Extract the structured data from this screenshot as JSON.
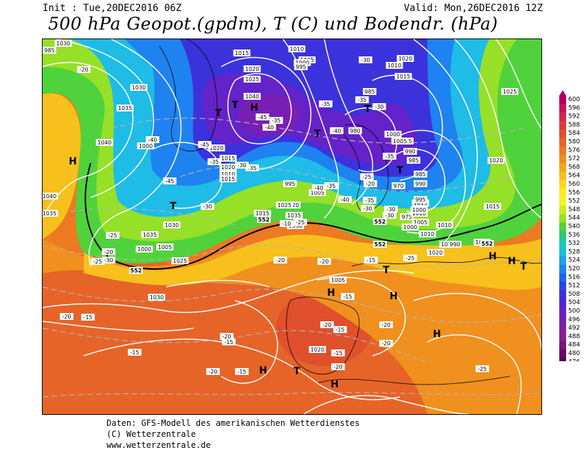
{
  "header": {
    "init": "Init : Tue,20DEC2016 06Z",
    "valid": "Valid: Mon,26DEC2016 12Z",
    "title": "500 hPa Geopot.(gpdm), T (C) und Bodendr. (hPa)"
  },
  "footer": {
    "line1": "Daten: GFS-Modell des amerikanischen Wetterdienstes",
    "line2": "(C) Wetterzentrale",
    "line3": "www.wetterzentrale.de"
  },
  "legend": {
    "values": [
      "600",
      "596",
      "592",
      "588",
      "584",
      "580",
      "576",
      "572",
      "568",
      "564",
      "560",
      "556",
      "552",
      "548",
      "544",
      "540",
      "536",
      "532",
      "528",
      "524",
      "520",
      "516",
      "512",
      "508",
      "504",
      "500",
      "496",
      "492",
      "488",
      "484",
      "480",
      "476"
    ],
    "colors": [
      "#b4005a",
      "#c8145a",
      "#d22850",
      "#dc3c3c",
      "#e0502d",
      "#e66428",
      "#ec7a22",
      "#f0901e",
      "#f4a81c",
      "#f8c01c",
      "#fcd820",
      "#fcec24",
      "#f0f428",
      "#c8ec28",
      "#96e028",
      "#50d23c",
      "#28c878",
      "#1ec8b4",
      "#1ebce6",
      "#1ea0f0",
      "#1e82f0",
      "#1e64ee",
      "#2846e6",
      "#3c32dc",
      "#5028d2",
      "#6422c8",
      "#781eb4",
      "#821ea0",
      "#8c1e8c",
      "#7a1478",
      "#640a64",
      "#500550"
    ]
  },
  "map": {
    "pressure_labels": [
      "990",
      "985",
      "1015",
      "1010",
      "1005",
      "1000",
      "995",
      "1020",
      "1025",
      "1030",
      "1035",
      "1040",
      "985",
      "980",
      "975",
      "970",
      "1000",
      "995",
      "990",
      "985",
      "1015",
      "1010",
      "1005",
      "1000",
      "1010",
      "1015",
      "1020",
      "1025",
      "1030",
      "1035",
      "1040",
      "1020",
      "1030",
      "1035",
      "1025",
      "1030",
      "1040",
      "1035",
      "1025",
      "1020",
      "1015",
      "1010",
      "1010",
      "1005",
      "1000",
      "1015",
      "1020",
      "1010",
      "1015",
      "1020",
      "1020",
      "985",
      "990",
      "995",
      "1000",
      "1005",
      "1015",
      "1000",
      "1010",
      "995",
      "1005",
      "990",
      "1010",
      "1005",
      "1020",
      "1030"
    ],
    "temp_labels": [
      "-20",
      "-40",
      "-45",
      "-45",
      "-45",
      "-40",
      "-35",
      "-30",
      "-35",
      "-30",
      "-35",
      "-25",
      "-20",
      "-35",
      "-30",
      "-30",
      "-40",
      "-35",
      "-30",
      "-25",
      "-20",
      "-30",
      "-35",
      "-40",
      "-35",
      "-30",
      "-25",
      "-20",
      "-25",
      "-20",
      "-15",
      "-10",
      "-15",
      "-20",
      "-15",
      "-20",
      "-15",
      "-15",
      "-20",
      "-15",
      "-20",
      "-15",
      "-15",
      "-20",
      "-20",
      "-20",
      "-25",
      "-25",
      "-30",
      "-40",
      "-35"
    ],
    "geopot_labels": [
      "552",
      "552",
      "552",
      "552",
      "552"
    ],
    "highs": [
      "H",
      "H",
      "H",
      "H",
      "H",
      "H",
      "H",
      "H",
      "H"
    ],
    "lows": [
      "T",
      "T",
      "T",
      "T",
      "T",
      "T",
      "T",
      "T",
      "T"
    ]
  }
}
